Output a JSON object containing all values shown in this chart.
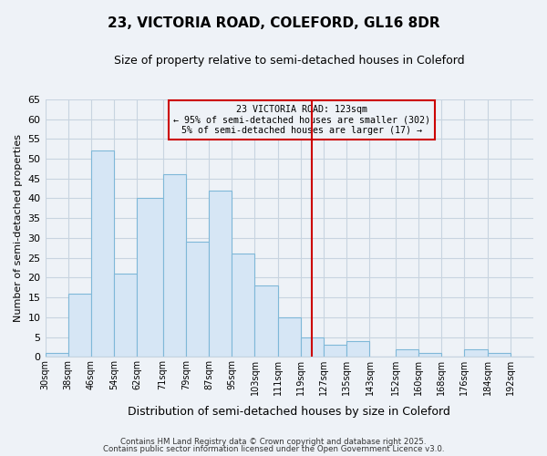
{
  "title": "23, VICTORIA ROAD, COLEFORD, GL16 8DR",
  "subtitle": "Size of property relative to semi-detached houses in Coleford",
  "xlabel": "Distribution of semi-detached houses by size in Coleford",
  "ylabel": "Number of semi-detached properties",
  "bin_labels": [
    "30sqm",
    "38sqm",
    "46sqm",
    "54sqm",
    "62sqm",
    "71sqm",
    "79sqm",
    "87sqm",
    "95sqm",
    "103sqm",
    "111sqm",
    "119sqm",
    "127sqm",
    "135sqm",
    "143sqm",
    "152sqm",
    "160sqm",
    "168sqm",
    "176sqm",
    "184sqm",
    "192sqm"
  ],
  "bin_edges": [
    30,
    38,
    46,
    54,
    62,
    71,
    79,
    87,
    95,
    103,
    111,
    119,
    127,
    135,
    143,
    152,
    160,
    168,
    176,
    184,
    192,
    200
  ],
  "counts": [
    1,
    16,
    52,
    21,
    40,
    46,
    29,
    42,
    26,
    18,
    10,
    5,
    3,
    4,
    0,
    2,
    1,
    0,
    2,
    1,
    0
  ],
  "bar_color": "#d6e6f5",
  "bar_edge_color": "#7fb8d8",
  "vline_x": 123,
  "vline_color": "#cc0000",
  "annotation_title": "23 VICTORIA ROAD: 123sqm",
  "annotation_line1": "← 95% of semi-detached houses are smaller (302)",
  "annotation_line2": "5% of semi-detached houses are larger (17) →",
  "annotation_box_color": "#cc0000",
  "ylim": [
    0,
    65
  ],
  "yticks": [
    0,
    5,
    10,
    15,
    20,
    25,
    30,
    35,
    40,
    45,
    50,
    55,
    60,
    65
  ],
  "background_color": "#eef2f7",
  "grid_color": "#c8d4e0",
  "footer1": "Contains HM Land Registry data © Crown copyright and database right 2025.",
  "footer2": "Contains public sector information licensed under the Open Government Licence v3.0."
}
